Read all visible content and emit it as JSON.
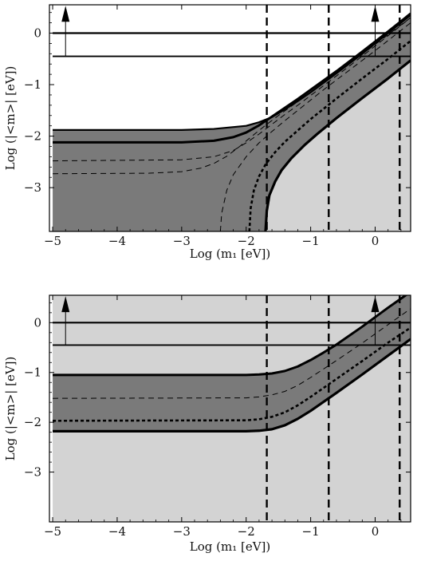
{
  "chart_data": [
    {
      "type": "line",
      "xlabel": "Log (m₁ [eV])",
      "ylabel": "Log (|<m>| [eV])",
      "xlim": [
        -5.05,
        0.55
      ],
      "ylim": [
        -3.85,
        0.55
      ],
      "xticks": [
        -5,
        -4,
        -3,
        -2,
        -1,
        0
      ],
      "xtick_labels": [
        "−5",
        "−4",
        "−3",
        "−2",
        "−1",
        "0"
      ],
      "yticks": [
        -3,
        -2,
        -1,
        0
      ],
      "ytick_labels": [
        "−3",
        "−2",
        "−1",
        "0"
      ],
      "grid": false,
      "horizontal_lines": [
        0.0,
        -0.45
      ],
      "vertical_dashed_lines": [
        -1.68,
        -0.72,
        0.38
      ],
      "arrows_up": [
        -4.8,
        0.0
      ],
      "light_region_min_x": -1.5,
      "curves": [
        {
          "style": "solid-outer-upper",
          "x": [
            -5.0,
            -3.0,
            -2.5,
            -2.0,
            -1.8,
            -1.6,
            -1.4,
            -1.2,
            -1.0,
            -0.6,
            -0.2,
            0.2,
            0.55
          ],
          "y": [
            -1.88,
            -1.88,
            -1.86,
            -1.8,
            -1.73,
            -1.63,
            -1.48,
            -1.32,
            -1.15,
            -0.78,
            -0.4,
            0.0,
            0.35
          ]
        },
        {
          "style": "solid-bold-upper",
          "x": [
            -5.0,
            -3.0,
            -2.5,
            -2.2,
            -2.0,
            -1.8,
            -1.6,
            -1.4,
            -1.2,
            -1.0,
            -0.6,
            -0.2,
            0.2,
            0.55
          ],
          "y": [
            -2.12,
            -2.12,
            -2.09,
            -2.02,
            -1.93,
            -1.79,
            -1.62,
            -1.45,
            -1.28,
            -1.1,
            -0.74,
            -0.36,
            0.03,
            0.38
          ]
        },
        {
          "style": "dashed-thin-upper",
          "x": [
            -5.0,
            -3.0,
            -2.5,
            -2.2,
            -2.0,
            -1.8,
            -1.6,
            -1.4,
            -1.2,
            -0.8,
            -0.4,
            0.0,
            0.55
          ],
          "y": [
            -2.48,
            -2.46,
            -2.4,
            -2.28,
            -2.13,
            -1.96,
            -1.77,
            -1.58,
            -1.4,
            -1.02,
            -0.64,
            -0.25,
            0.3
          ]
        },
        {
          "style": "dashed-thin-lower",
          "x": [
            -5.0,
            -3.5,
            -3.0,
            -2.7,
            -2.5,
            -2.3,
            -2.1,
            -1.9,
            -1.7,
            -1.5,
            -1.3,
            -1.1,
            -0.8,
            -0.4,
            0.0,
            0.55
          ],
          "y": [
            -2.73,
            -2.72,
            -2.69,
            -2.62,
            -2.53,
            -2.39,
            -2.2,
            -1.99,
            -1.79,
            -1.6,
            -1.42,
            -1.24,
            -0.97,
            -0.6,
            -0.22,
            0.3
          ]
        },
        {
          "style": "dashed-thin-steep",
          "x": [
            -2.4,
            -2.38,
            -2.3,
            -2.2,
            -2.0,
            -1.8,
            -1.6,
            -1.4,
            -1.2,
            -0.8,
            -0.4,
            0.0,
            0.55
          ],
          "y": [
            -3.85,
            -3.5,
            -3.05,
            -2.75,
            -2.4,
            -2.13,
            -1.91,
            -1.7,
            -1.5,
            -1.1,
            -0.72,
            -0.34,
            0.2
          ]
        },
        {
          "style": "dashed-bold-lower",
          "x": [
            -1.95,
            -1.93,
            -1.88,
            -1.8,
            -1.7,
            -1.55,
            -1.4,
            -1.2,
            -1.0,
            -0.6,
            -0.2,
            0.2,
            0.55
          ],
          "y": [
            -3.85,
            -3.4,
            -3.05,
            -2.78,
            -2.55,
            -2.31,
            -2.11,
            -1.89,
            -1.67,
            -1.27,
            -0.88,
            -0.5,
            -0.15
          ]
        },
        {
          "style": "solid-bold-lower",
          "x": [
            -1.7,
            -1.68,
            -1.64,
            -1.55,
            -1.45,
            -1.3,
            -1.1,
            -0.9,
            -0.6,
            -0.2,
            0.2,
            0.55
          ],
          "y": [
            -3.85,
            -3.45,
            -3.15,
            -2.88,
            -2.66,
            -2.43,
            -2.18,
            -1.96,
            -1.65,
            -1.26,
            -0.88,
            -0.53
          ]
        }
      ]
    },
    {
      "type": "line",
      "xlabel": "Log (m₁ [eV])",
      "ylabel": "Log (|<m>| [eV])",
      "xlim": [
        -5.05,
        0.55
      ],
      "ylim": [
        -4.0,
        0.55
      ],
      "xticks": [
        -5,
        -4,
        -3,
        -2,
        -1,
        0
      ],
      "xtick_labels": [
        "−5",
        "−4",
        "−3",
        "−2",
        "−1",
        "0"
      ],
      "yticks": [
        -3,
        -2,
        -1,
        0
      ],
      "ytick_labels": [
        "−3",
        "−2",
        "−1",
        "0"
      ],
      "grid": false,
      "horizontal_lines": [
        0.0,
        -0.45
      ],
      "vertical_dashed_lines": [
        -1.68,
        -0.72,
        0.38
      ],
      "arrows_up": [
        -4.8,
        0.0
      ],
      "curves": [
        {
          "style": "solid-bold-upper",
          "x": [
            -5.0,
            -2.0,
            -1.8,
            -1.6,
            -1.4,
            -1.2,
            -1.0,
            -0.8,
            -0.6,
            -0.2,
            0.2,
            0.55
          ],
          "y": [
            -1.05,
            -1.05,
            -1.04,
            -1.02,
            -0.97,
            -0.88,
            -0.75,
            -0.6,
            -0.44,
            -0.08,
            0.3,
            0.62
          ]
        },
        {
          "style": "dashed-thin-upper",
          "x": [
            -5.0,
            -2.0,
            -1.8,
            -1.6,
            -1.4,
            -1.2,
            -1.0,
            -0.8,
            -0.6,
            -0.2,
            0.2,
            0.55
          ],
          "y": [
            -1.52,
            -1.51,
            -1.49,
            -1.45,
            -1.38,
            -1.26,
            -1.1,
            -0.93,
            -0.76,
            -0.41,
            -0.04,
            0.28
          ]
        },
        {
          "style": "dashed-bold-lower",
          "x": [
            -5.0,
            -2.0,
            -1.8,
            -1.6,
            -1.4,
            -1.2,
            -1.0,
            -0.8,
            -0.6,
            -0.2,
            0.2,
            0.55
          ],
          "y": [
            -1.97,
            -1.96,
            -1.94,
            -1.89,
            -1.8,
            -1.66,
            -1.49,
            -1.31,
            -1.13,
            -0.77,
            -0.4,
            -0.1
          ]
        },
        {
          "style": "solid-bold-lower",
          "x": [
            -5.0,
            -2.0,
            -1.8,
            -1.6,
            -1.4,
            -1.2,
            -1.0,
            -0.8,
            -0.6,
            -0.2,
            0.2,
            0.55
          ],
          "y": [
            -2.18,
            -2.18,
            -2.17,
            -2.14,
            -2.06,
            -1.93,
            -1.77,
            -1.59,
            -1.41,
            -1.04,
            -0.66,
            -0.33
          ]
        }
      ]
    }
  ],
  "colors": {
    "light_region": "#d3d3d3",
    "dark_band": "#7a7a7a",
    "line": "#000000",
    "frame": "#000000"
  }
}
